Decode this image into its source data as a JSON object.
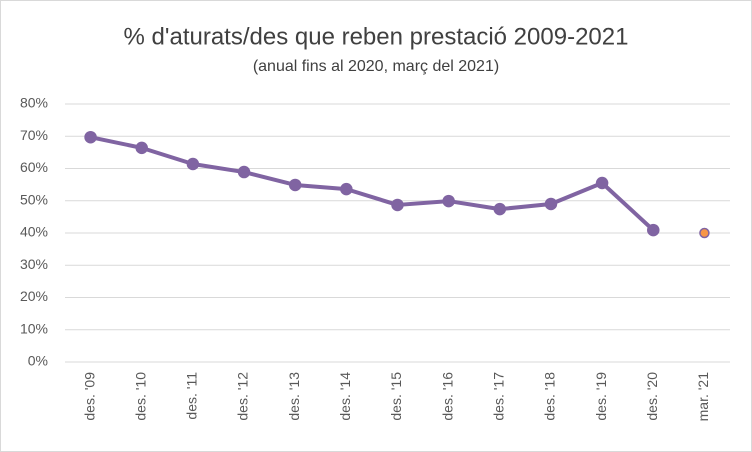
{
  "chart_data": {
    "type": "line",
    "title": "% d'aturats/des que reben prestació 2009-2021",
    "subtitle": "(anual fins al 2020, març del 2021)",
    "categories": [
      "des. '09",
      "des. '10",
      "des. '11",
      "des. '12",
      "des. '13",
      "des. '14",
      "des. '15",
      "des. '16",
      "des. '17",
      "des. '18",
      "des. '19",
      "des. '20",
      "mar. '21"
    ],
    "series": [
      {
        "color": "#8064a2",
        "values": [
          69.7,
          66.4,
          61.4,
          58.9,
          54.9,
          53.6,
          48.7,
          49.9,
          47.4,
          49.0,
          55.5,
          40.9,
          null
        ]
      },
      {
        "color": "#f79646",
        "values": [
          null,
          null,
          null,
          null,
          null,
          null,
          null,
          null,
          null,
          null,
          null,
          null,
          40.0
        ]
      }
    ],
    "ylim": [
      0,
      80
    ],
    "yticks": [
      {
        "value": 0,
        "label": "0%"
      },
      {
        "value": 10,
        "label": "10%"
      },
      {
        "value": 20,
        "label": "20%"
      },
      {
        "value": 30,
        "label": "30%"
      },
      {
        "value": 40,
        "label": "40%"
      },
      {
        "value": 50,
        "label": "50%"
      },
      {
        "value": 60,
        "label": "60%"
      },
      {
        "value": 70,
        "label": "70%"
      },
      {
        "value": 80,
        "label": "80%"
      }
    ],
    "grid": true
  }
}
